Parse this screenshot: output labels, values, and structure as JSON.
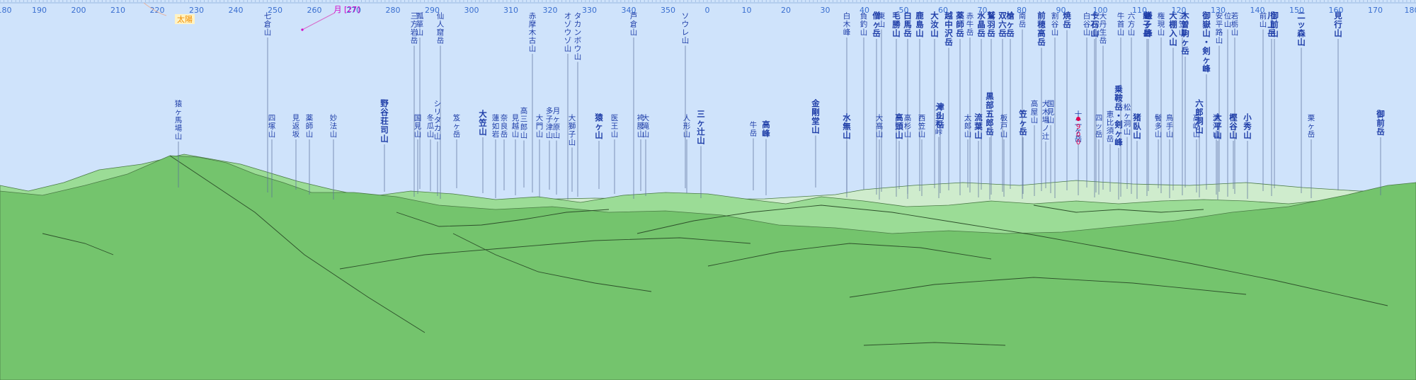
{
  "compass": {
    "labels": [
      "180",
      "190",
      "200",
      "210",
      "220",
      "230",
      "240",
      "250",
      "260",
      "270",
      "280",
      "290",
      "300",
      "310",
      "320",
      "330",
      "340",
      "350",
      "0",
      "10",
      "20",
      "30",
      "40",
      "50",
      "60",
      "70",
      "80",
      "90",
      "100",
      "110",
      "120",
      "130",
      "140",
      "150",
      "160",
      "170",
      "180"
    ]
  },
  "celestial": {
    "sun": {
      "label": "太陽",
      "color": "#f08c00"
    },
    "moon": {
      "label": "月 [27]",
      "color": "#d400c8"
    }
  },
  "colors": {
    "sky": "#cfe3fb",
    "land_far": "#cfeccd",
    "land_mid": "#9bdc96",
    "land_near": "#74c46d",
    "label": "#1f3ea8",
    "compass": "#3a6fd0",
    "marker": "#e0004f"
  },
  "peaks": [
    {
      "name": "猿ヶ馬場山",
      "bold": false
    },
    {
      "name": "七倉山",
      "bold": false
    },
    {
      "name": "四塚山",
      "bold": false
    },
    {
      "name": "見返坂",
      "bold": false
    },
    {
      "name": "薬師山",
      "bold": false
    },
    {
      "name": "妙法山",
      "bold": false
    },
    {
      "name": "野谷荘司山",
      "bold": true
    },
    {
      "name": "三方岩岳",
      "bold": false
    },
    {
      "name": "瓢箪山",
      "bold": false
    },
    {
      "name": "国見山",
      "bold": false
    },
    {
      "name": "仙人窟岳",
      "bold": false
    },
    {
      "name": "冬瓜山",
      "bold": false
    },
    {
      "name": "シリタカ山",
      "bold": false
    },
    {
      "name": "笈ヶ岳",
      "bold": false
    },
    {
      "name": "大笠山",
      "bold": true
    },
    {
      "name": "蓮如岩",
      "bold": false
    },
    {
      "name": "奈良岳",
      "bold": false
    },
    {
      "name": "見越山",
      "bold": false
    },
    {
      "name": "高三郎山",
      "bold": false
    },
    {
      "name": "赤摩木古山",
      "bold": false
    },
    {
      "name": "大門山",
      "bold": false
    },
    {
      "name": "多子津山",
      "bold": false
    },
    {
      "name": "月ヶ原山",
      "bold": false
    },
    {
      "name": "オゾウゾ山",
      "bold": false
    },
    {
      "name": "大獅子山",
      "bold": false
    },
    {
      "name": "タカンボウ山",
      "bold": false
    },
    {
      "name": "猿ヶ山",
      "bold": true
    },
    {
      "name": "医王山",
      "bold": false
    },
    {
      "name": "芦倉山",
      "bold": false
    },
    {
      "name": "袴腰山",
      "bold": false
    },
    {
      "name": "大滝山",
      "bold": false
    },
    {
      "name": "ソウレ山",
      "bold": false
    },
    {
      "name": "人形山",
      "bold": false
    },
    {
      "name": "三ヶ辻山",
      "bold": true
    },
    {
      "name": "牛岳",
      "bold": false
    },
    {
      "name": "高峰",
      "bold": true
    },
    {
      "name": "金剛堂山",
      "bold": true
    },
    {
      "name": "白木峰",
      "bold": false
    },
    {
      "name": "水無山",
      "bold": true
    },
    {
      "name": "負釣山",
      "bold": false
    },
    {
      "name": "僧ヶ岳",
      "bold": true
    },
    {
      "name": "大高山",
      "bold": false
    },
    {
      "name": "東山",
      "bold": false
    },
    {
      "name": "毛勝山",
      "bold": true
    },
    {
      "name": "高頭山",
      "bold": true
    },
    {
      "name": "白馬岳",
      "bold": true
    },
    {
      "name": "高杉山",
      "bold": false
    },
    {
      "name": "鹿島山",
      "bold": true
    },
    {
      "name": "西笠山",
      "bold": false
    },
    {
      "name": "大汝山",
      "bold": true
    },
    {
      "name": "津山岳",
      "bold": true
    },
    {
      "name": "大多和峠",
      "bold": false
    },
    {
      "name": "越中沢岳",
      "bold": true
    },
    {
      "name": "薬師岳",
      "bold": true
    },
    {
      "name": "太郎山",
      "bold": false
    },
    {
      "name": "赤牛岳",
      "bold": false
    },
    {
      "name": "流葉山",
      "bold": true
    },
    {
      "name": "水晶岳",
      "bold": true
    },
    {
      "name": "鷲羽岳",
      "bold": true
    },
    {
      "name": "黒部五郎岳",
      "bold": true
    },
    {
      "name": "双六岳",
      "bold": true
    },
    {
      "name": "板戸山",
      "bold": false
    },
    {
      "name": "槍ヶ岳",
      "bold": true
    },
    {
      "name": "笠ヶ岳",
      "bold": true
    },
    {
      "name": "南岳",
      "bold": false
    },
    {
      "name": "前穂高岳",
      "bold": true
    },
    {
      "name": "高屋山",
      "bold": false
    },
    {
      "name": "大木場ノ辻",
      "bold": false
    },
    {
      "name": "国見山",
      "bold": false
    },
    {
      "name": "割谷山",
      "bold": false
    },
    {
      "name": "焼岳",
      "bold": true
    },
    {
      "name": "十二ヶ岳",
      "bold": false
    },
    {
      "name": "白谷山",
      "bold": false
    },
    {
      "name": "安房山",
      "bold": false
    },
    {
      "name": "十石山",
      "bold": true
    },
    {
      "name": "大丹生岳",
      "bold": false
    },
    {
      "name": "四ッ岳",
      "bold": false
    },
    {
      "name": "乗鞍岳・剣ヶ峰",
      "bold": true
    },
    {
      "name": "恵比須岳",
      "bold": false
    },
    {
      "name": "牛首山",
      "bold": false
    },
    {
      "name": "松ヶ洞山",
      "bold": false
    },
    {
      "name": "六方山",
      "bold": false
    },
    {
      "name": "猪臥山",
      "bold": true
    },
    {
      "name": "鎌ヶ峰",
      "bold": true
    },
    {
      "name": "継子岳",
      "bold": true
    },
    {
      "name": "鬢多山",
      "bold": false
    },
    {
      "name": "権現山",
      "bold": false
    },
    {
      "name": "鳥手山",
      "bold": false
    },
    {
      "name": "大棚入山",
      "bold": true
    },
    {
      "name": "三笠山",
      "bold": false
    },
    {
      "name": "木曽駒ヶ岳",
      "bold": true
    },
    {
      "name": "高屹山",
      "bold": false
    },
    {
      "name": "六郎洞山",
      "bold": true
    },
    {
      "name": "御嶽山・剣ヶ峰",
      "bold": true
    },
    {
      "name": "湯河山",
      "bold": false
    },
    {
      "name": "大平山",
      "bold": true
    },
    {
      "name": "安平路山",
      "bold": false
    },
    {
      "name": "位山",
      "bold": false
    },
    {
      "name": "樫谷山",
      "bold": true
    },
    {
      "name": "若栃山",
      "bold": false
    },
    {
      "name": "小秀山",
      "bold": true
    },
    {
      "name": "前山",
      "bold": false
    },
    {
      "name": "川上岳",
      "bold": true
    },
    {
      "name": "御前山",
      "bold": true
    },
    {
      "name": "二ッ森山",
      "bold": true
    },
    {
      "name": "栗ヶ岳",
      "bold": false
    },
    {
      "name": "見行山",
      "bold": true
    },
    {
      "name": "御前岳",
      "bold": true
    }
  ],
  "marker": {
    "label": "900"
  }
}
